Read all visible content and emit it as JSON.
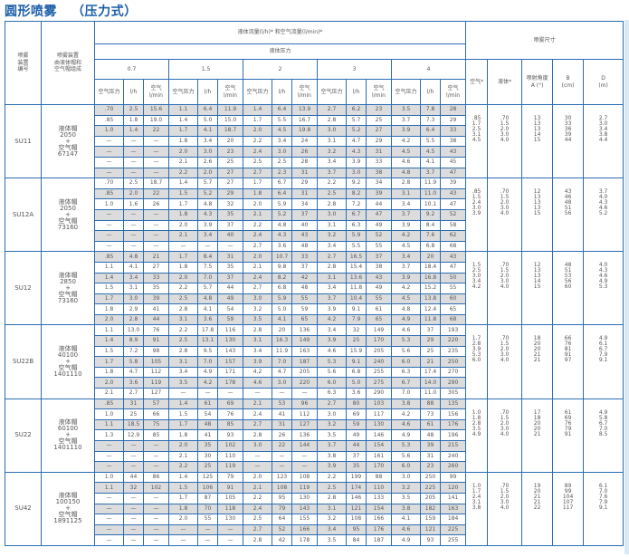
{
  "title": "圆形喷雾   （压力式）",
  "header": {
    "col_id": "喷雾\n装置\n编号",
    "col_setup": "喷雾装置\n由液体帽和\n空气帽组成",
    "flow": "液体流量(l/h)* 和空气流量(l/min)*",
    "liquid_pressure": "液体压力",
    "pressures": [
      "0.7",
      "1.5",
      "2",
      "3",
      "4"
    ],
    "sub": [
      "空气压力",
      "l/h",
      "空气\nl/min"
    ],
    "spray_size": "喷雾尺寸",
    "dims": [
      "空气*",
      "液体*",
      "喷射角度\nA (°)",
      "B\n(cm)",
      "D\n(m)"
    ]
  },
  "groups": [
    {
      "id": "SU11",
      "nozzle": "液体帽\n2050\n+\n空气帽\n67147",
      "rows": [
        [
          ".70",
          "2.5",
          "15.6",
          "1.1",
          "6.4",
          "11.9",
          "1.4",
          "6.4",
          "13.9",
          "2.7",
          "6.2",
          "23",
          "3.5",
          "7.8",
          "28"
        ],
        [
          ".85",
          "1.8",
          "19.0",
          "1.4",
          "5.0",
          "15.0",
          "1.7",
          "5.5",
          "16.7",
          "2.8",
          "5.7",
          "25",
          "3.7",
          "7.3",
          "29"
        ],
        [
          "1.0",
          "1.4",
          "22",
          "1.7",
          "4.1",
          "18.7",
          "2.0",
          "4.5",
          "19.8",
          "3.0",
          "5.2",
          "27",
          "3.9",
          "6.4",
          "33"
        ],
        [
          "—",
          "—",
          "—",
          "1.8",
          "3.4",
          "20",
          "2.2",
          "3.4",
          "24",
          "3.1",
          "4.7",
          "29",
          "4.2",
          "5.5",
          "38"
        ],
        [
          "—",
          "—",
          "—",
          "2.0",
          "3.0",
          "23",
          "2.4",
          "3.0",
          "26",
          "3.2",
          "4.3",
          "31",
          "4.5",
          "4.5",
          "43"
        ],
        [
          "—",
          "—",
          "—",
          "2.1",
          "2.6",
          "25",
          "2.5",
          "2.5",
          "28",
          "3.4",
          "3.9",
          "33",
          "4.6",
          "4.1",
          "45"
        ],
        [
          "—",
          "—",
          "—",
          "2.2",
          "2.0",
          "27",
          "2.7",
          "2.3",
          "31",
          "3.7",
          "3.0",
          "38",
          "4.8",
          "3.7",
          "47"
        ]
      ],
      "dims": {
        "air": ".85\n1.7\n2.5\n3.1\n4.5",
        "liquid": ".70\n1.5\n2.0\n3.0\n4.0",
        "angle": "13\n13\n13\n14\n15",
        "b": "30\n33\n36\n39\n44",
        "d": "2.7\n3.0\n3.4\n3.8\n4.4"
      }
    },
    {
      "id": "SU12A",
      "nozzle": "液体帽\n2050\n+\n空气帽\n73160",
      "rows": [
        [
          ".70",
          "2.5",
          "18.7",
          "1.4",
          "5.7",
          "27",
          "1.7",
          "6.7",
          "29",
          "2.2",
          "9.2",
          "34",
          "2.8",
          "11.9",
          "39"
        ],
        [
          ".85",
          "2.0",
          "22",
          "1.5",
          "5.2",
          "29",
          "1.8",
          "6.4",
          "31",
          "2.5",
          "8.2",
          "39",
          "3.1",
          "11.0",
          "43"
        ],
        [
          "1.0",
          "1.6",
          "26",
          "1.7",
          "4.8",
          "32",
          "2.0",
          "5.9",
          "34",
          "2.8",
          "7.2",
          "44",
          "3.4",
          "10.1",
          "47"
        ],
        [
          "—",
          "—",
          "—",
          "1.8",
          "4.3",
          "35",
          "2.1",
          "5.2",
          "37",
          "3.0",
          "6.7",
          "47",
          "3.7",
          "9.2",
          "52"
        ],
        [
          "—",
          "—",
          "—",
          "2.0",
          "3.9",
          "37",
          "2.2",
          "4.8",
          "40",
          "3.1",
          "6.3",
          "49",
          "3.9",
          "8.4",
          "58"
        ],
        [
          "—",
          "—",
          "—",
          "2.1",
          "3.4",
          "40",
          "2.4",
          "4.3",
          "43",
          "3.2",
          "5.9",
          "52",
          "4.2",
          "7.6",
          "62"
        ],
        [
          "—",
          "—",
          "—",
          "—",
          "—",
          "—",
          "2.7",
          "3.6",
          "48",
          "3.4",
          "5.5",
          "55",
          "4.5",
          "6.8",
          "68"
        ]
      ],
      "dims": {
        "air": ".85\n1.5\n2.4\n3.0\n3.9",
        "liquid": ".70\n1.5\n2.0\n3.0\n4.0",
        "angle": "12\n13\n13\n13\n15",
        "b": "43\n46\n48\n51\n56",
        "d": "3.7\n4.0\n4.3\n4.6\n5.2"
      }
    },
    {
      "id": "SU12",
      "nozzle": "液体帽\n2850\n+\n空气帽\n73160",
      "rows": [
        [
          ".85",
          "4.8",
          "21",
          "1.7",
          "8.4",
          "31",
          "2.0",
          "10.7",
          "33",
          "2.7",
          "16.5",
          "37",
          "3.4",
          "20",
          "43"
        ],
        [
          "1.1",
          "4.1",
          "27",
          "1.8",
          "7.5",
          "35",
          "2.1",
          "9.8",
          "37",
          "2.8",
          "15.4",
          "38",
          "3.7",
          "18.4",
          "47"
        ],
        [
          "1.4",
          "3.4",
          "33",
          "2.0",
          "7.0",
          "37",
          "2.4",
          "8.2",
          "42",
          "3.1",
          "13.6",
          "43",
          "3.9",
          "16.8",
          "50"
        ],
        [
          "1.5",
          "3.1",
          "35",
          "2.2",
          "5.7",
          "44",
          "2.7",
          "6.8",
          "48",
          "3.4",
          "11.8",
          "49",
          "4.2",
          "15.2",
          "55"
        ],
        [
          "1.7",
          "3.0",
          "39",
          "2.5",
          "4.8",
          "49",
          "3.0",
          "5.9",
          "55",
          "3.7",
          "10.4",
          "55",
          "4.5",
          "13.8",
          "60"
        ],
        [
          "1.8",
          "2.9",
          "41",
          "2.8",
          "4.1",
          "54",
          "3.2",
          "5.0",
          "59",
          "3.9",
          "9.1",
          "61",
          "4.8",
          "12.4",
          "65"
        ],
        [
          "2.0",
          "2.8",
          "44",
          "3.1",
          "3.6",
          "59",
          "3.5",
          "4.1",
          "65",
          "4.2",
          "7.9",
          "65",
          "4.9",
          "11.8",
          "68"
        ]
      ],
      "dims": {
        "air": "1.5\n2.5\n3.0\n3.4\n4.2",
        "liquid": ".70\n1.5\n2.0\n3.0\n4.0",
        "angle": "12\n13\n13\n14\n15",
        "b": "48\n51\n53\n56\n60",
        "d": "4.0\n4.3\n4.6\n4.9\n5.3"
      }
    },
    {
      "id": "SU22B",
      "nozzle": "液体帽\n40100\n+\n空气帽\n1401110",
      "rows": [
        [
          "1.1",
          "13.0",
          "76",
          "2.2",
          "17.8",
          "116",
          "2.8",
          "20",
          "136",
          "3.4",
          "32",
          "149",
          "4.6",
          "37",
          "193"
        ],
        [
          "1.4",
          "8.9",
          "91",
          "2.5",
          "13.1",
          "130",
          "3.1",
          "16.3",
          "149",
          "3.9",
          "25",
          "170",
          "5.3",
          "29",
          "220"
        ],
        [
          "1.5",
          "7.2",
          "98",
          "2.8",
          "9.5",
          "143",
          "3.4",
          "11.9",
          "163",
          "4.6",
          "15.9",
          "205",
          "5.6",
          "25",
          "235"
        ],
        [
          "1.7",
          "5.8",
          "105",
          "3.1",
          "7.0",
          "157",
          "3.9",
          "7.0",
          "187",
          "5.3",
          "9.1",
          "240",
          "6.0",
          "21",
          "250"
        ],
        [
          "1.8",
          "4.7",
          "112",
          "3.4",
          "4.9",
          "171",
          "4.2",
          "4.7",
          "205",
          "5.6",
          "6.8",
          "255",
          "6.3",
          "17.4",
          "270"
        ],
        [
          "2.0",
          "3.6",
          "119",
          "3.5",
          "4.2",
          "178",
          "4.6",
          "3.0",
          "220",
          "6.0",
          "5.0",
          "275",
          "6.7",
          "14.0",
          "290"
        ],
        [
          "2.1",
          "2.7",
          "127",
          "—",
          "—",
          "—",
          "—",
          "—",
          "—",
          "6.3",
          "3.6",
          "290",
          "7.0",
          "11.0",
          "305"
        ]
      ],
      "dims": {
        "air": "1.7\n2.8\n3.9\n5.3\n6.0",
        "liquid": ".70\n1.5\n2.0\n3.0\n4.0",
        "angle": "18\n20\n20\n21\n21",
        "b": "66\n76\n81\n91\n97",
        "d": "4.9\n6.1\n6.7\n7.9\n9.1"
      }
    },
    {
      "id": "SU22",
      "nozzle": "液体帽\n60100\n+\n空气帽\n1401110",
      "rows": [
        [
          ".85",
          "31",
          "57",
          "1.4",
          "61",
          "69",
          "2.1",
          "53",
          "96",
          "2.7",
          "80",
          "103",
          "3.8",
          "88",
          "135"
        ],
        [
          "1.0",
          "25",
          "66",
          "1.5",
          "54",
          "76",
          "2.4",
          "41",
          "112",
          "3.0",
          "69",
          "117",
          "4.2",
          "73",
          "156"
        ],
        [
          "1.1",
          "18.5",
          "75",
          "1.7",
          "48",
          "85",
          "2.7",
          "31",
          "127",
          "3.2",
          "59",
          "130",
          "4.6",
          "61",
          "176"
        ],
        [
          "1.3",
          "12.9",
          "85",
          "1.8",
          "41",
          "93",
          "2.8",
          "26",
          "136",
          "3.5",
          "49",
          "146",
          "4.9",
          "48",
          "196"
        ],
        [
          "—",
          "—",
          "—",
          "2.0",
          "35",
          "102",
          "3.0",
          "22",
          "144",
          "3.7",
          "44",
          "154",
          "5.3",
          "39",
          "215"
        ],
        [
          "—",
          "—",
          "—",
          "2.1",
          "30",
          "110",
          "—",
          "—",
          "—",
          "3.8",
          "37",
          "161",
          "5.6",
          "31",
          "240"
        ],
        [
          "—",
          "—",
          "—",
          "2.2",
          "25",
          "119",
          "—",
          "—",
          "—",
          "3.9",
          "35",
          "170",
          "6.0",
          "23",
          "260"
        ]
      ],
      "dims": {
        "air": "1.0\n1.8\n2.8\n3.5\n4.9",
        "liquid": ".70\n1.5\n2.0\n3.0\n4.0",
        "angle": "17\n18\n20\n20\n21",
        "b": "61\n69\n76\n79\n91",
        "d": "4.9\n5.8\n6.7\n7.0\n8.5"
      }
    },
    {
      "id": "SU42",
      "nozzle": "液体帽\n100150\n+\n空气帽\n1891125",
      "rows": [
        [
          "1.0",
          "44",
          "86",
          "1.4",
          "125",
          "79",
          "2.0",
          "123",
          "108",
          "2.2",
          "199",
          "88",
          "3.0",
          "250",
          "99"
        ],
        [
          "1.1",
          "32",
          "102",
          "1.5",
          "106",
          "91",
          "2.1",
          "108",
          "119",
          "2.5",
          "174",
          "110",
          "3.2",
          "225",
          "120"
        ],
        [
          "—",
          "—",
          "—",
          "1.7",
          "87",
          "105",
          "2.2",
          "95",
          "130",
          "2.8",
          "146",
          "133",
          "3.5",
          "205",
          "141"
        ],
        [
          "—",
          "—",
          "—",
          "1.8",
          "70",
          "118",
          "2.4",
          "79",
          "143",
          "3.1",
          "121",
          "154",
          "3.8",
          "182",
          "163"
        ],
        [
          "—",
          "—",
          "—",
          "2.0",
          "55",
          "130",
          "2.5",
          "64",
          "155",
          "3.2",
          "108",
          "166",
          "4.1",
          "159",
          "184"
        ],
        [
          "—",
          "—",
          "—",
          "—",
          "—",
          "—",
          "2.7",
          "52",
          "166",
          "3.4",
          "95",
          "176",
          "4.6",
          "121",
          "225"
        ],
        [
          "—",
          "—",
          "—",
          "—",
          "—",
          "—",
          "2.8",
          "42",
          "178",
          "3.5",
          "84",
          "187",
          "4.9",
          "93",
          "255"
        ]
      ],
      "dims": {
        "air": "1.0\n1.7\n2.4\n3.1\n3.8",
        "liquid": ".70\n1.5\n2.0\n3.0\n4.0",
        "angle": "19\n20\n21\n21\n22",
        "b": "89\n99\n104\n107\n117",
        "d": "6.1\n7.0\n7.6\n7.9\n9.1"
      }
    }
  ],
  "colors": {
    "title": "#1b5ea8",
    "border": "#2a6db3",
    "shade": "#dcdcdc"
  }
}
